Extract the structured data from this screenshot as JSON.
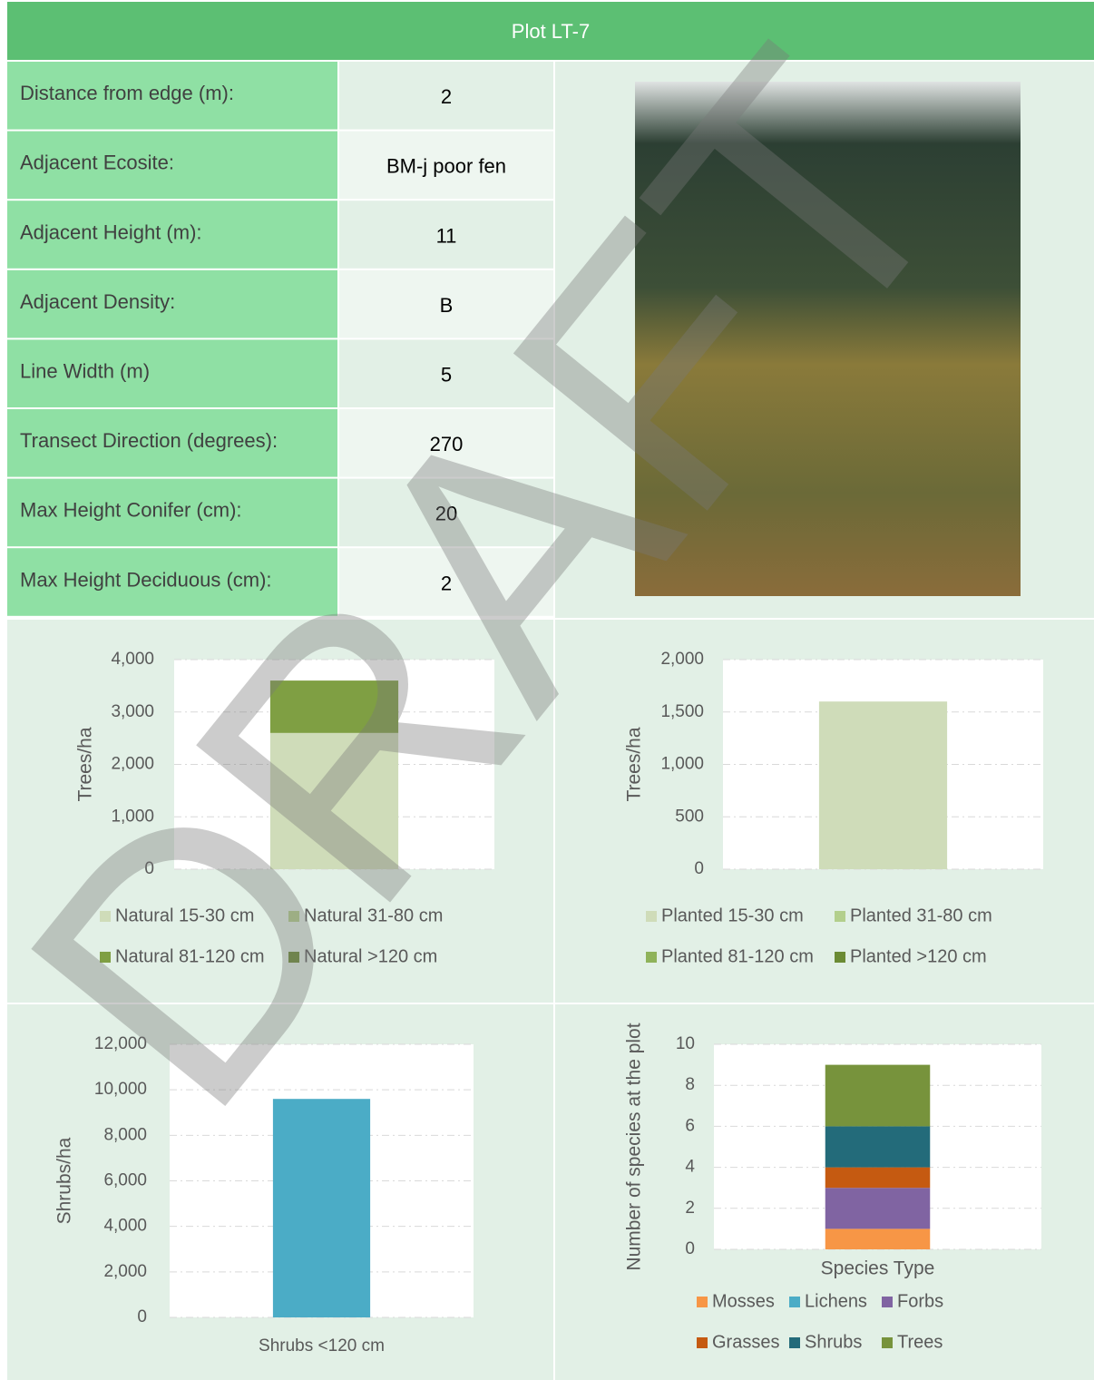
{
  "header": {
    "title": "Plot LT-7"
  },
  "table": {
    "rows": [
      [
        "Distance from edge (m):",
        2
      ],
      [
        "Adjacent Ecosite:",
        "BM-j poor fen"
      ],
      [
        "Adjacent Height (m):",
        11
      ],
      [
        "Adjacent Density:",
        "B"
      ],
      [
        "Line Width (m)",
        5
      ],
      [
        "Transect Direction (degrees):",
        270
      ],
      [
        "Max Height Conifer (cm):",
        20
      ],
      [
        "Max Height Deciduous (cm):",
        2
      ]
    ]
  },
  "watermark": "DRAFT",
  "chart_data": [
    {
      "type": "bar",
      "stacked": true,
      "categories": [
        null
      ],
      "ylabel": "Trees/ha",
      "ylim": [
        0,
        4000
      ],
      "yticks": [
        0,
        {
          "value": 1000,
          "label": "1,000"
        },
        {
          "value": 2000,
          "label": "2,000"
        },
        {
          "value": 3000,
          "label": "3,000"
        },
        {
          "value": 4000,
          "label": "4,000"
        }
      ],
      "grid": true,
      "series": [
        {
          "name": "Natural 15-30 cm",
          "color": "#cfdcb9",
          "values": [
            2600
          ]
        },
        {
          "name": "Natural 31-80 cm",
          "color": "#b3cf8c",
          "values": [
            0
          ]
        },
        {
          "name": "Natural 81-120 cm",
          "color": "#7f9f43",
          "values": [
            1000
          ]
        },
        {
          "name": "Natural >120 cm",
          "color": "#6b8b34",
          "values": [
            0
          ]
        }
      ]
    },
    {
      "type": "bar",
      "stacked": true,
      "categories": [
        null
      ],
      "ylabel": "Trees/ha",
      "ylim": [
        0,
        2000
      ],
      "yticks": [
        0,
        500,
        {
          "value": 1000,
          "label": "1,000"
        },
        {
          "value": 1500,
          "label": "1,500"
        },
        {
          "value": 2000,
          "label": "2,000"
        }
      ],
      "grid": true,
      "series": [
        {
          "name": "Planted 15-30 cm",
          "color": "#cfdcb9",
          "values": [
            1600
          ]
        },
        {
          "name": "Planted 31-80 cm",
          "color": "#b3cf8c",
          "values": [
            0
          ]
        },
        {
          "name": "Planted 81-120 cm",
          "color": "#8fb35a",
          "values": [
            0
          ]
        },
        {
          "name": "Planted >120 cm",
          "color": "#6b8b34",
          "values": [
            0
          ]
        }
      ]
    },
    {
      "type": "bar",
      "categories": [
        "Shrubs <120 cm"
      ],
      "ylabel": "Shrubs/ha",
      "values": [
        9600
      ],
      "color": "#4bacc6",
      "ylim": [
        0,
        12000
      ],
      "yticks": [
        0,
        {
          "value": 2000,
          "label": "2,000"
        },
        {
          "value": 4000,
          "label": "4,000"
        },
        {
          "value": 6000,
          "label": "6,000"
        },
        {
          "value": 8000,
          "label": "8,000"
        },
        {
          "value": 10000,
          "label": "10,000"
        },
        {
          "value": 12000,
          "label": "12,000"
        }
      ],
      "grid": true
    },
    {
      "type": "bar",
      "stacked": true,
      "categories": [
        null
      ],
      "ylabel": "Number of species at the plot",
      "xlabel": "Species Type",
      "ylim": [
        0,
        10
      ],
      "yticks": [
        0,
        2,
        4,
        6,
        8,
        10
      ],
      "grid": true,
      "series": [
        {
          "name": "Mosses",
          "color": "#f79646",
          "values": [
            1
          ]
        },
        {
          "name": "Lichens",
          "color": "#4bacc6",
          "values": [
            0
          ]
        },
        {
          "name": "Forbs",
          "color": "#8064a2",
          "values": [
            2
          ]
        },
        {
          "name": "Grasses",
          "color": "#c55a11",
          "values": [
            1
          ]
        },
        {
          "name": "Shrubs",
          "color": "#236b7a",
          "values": [
            2
          ]
        },
        {
          "name": "Trees",
          "color": "#77933c",
          "values": [
            3
          ]
        }
      ]
    }
  ]
}
